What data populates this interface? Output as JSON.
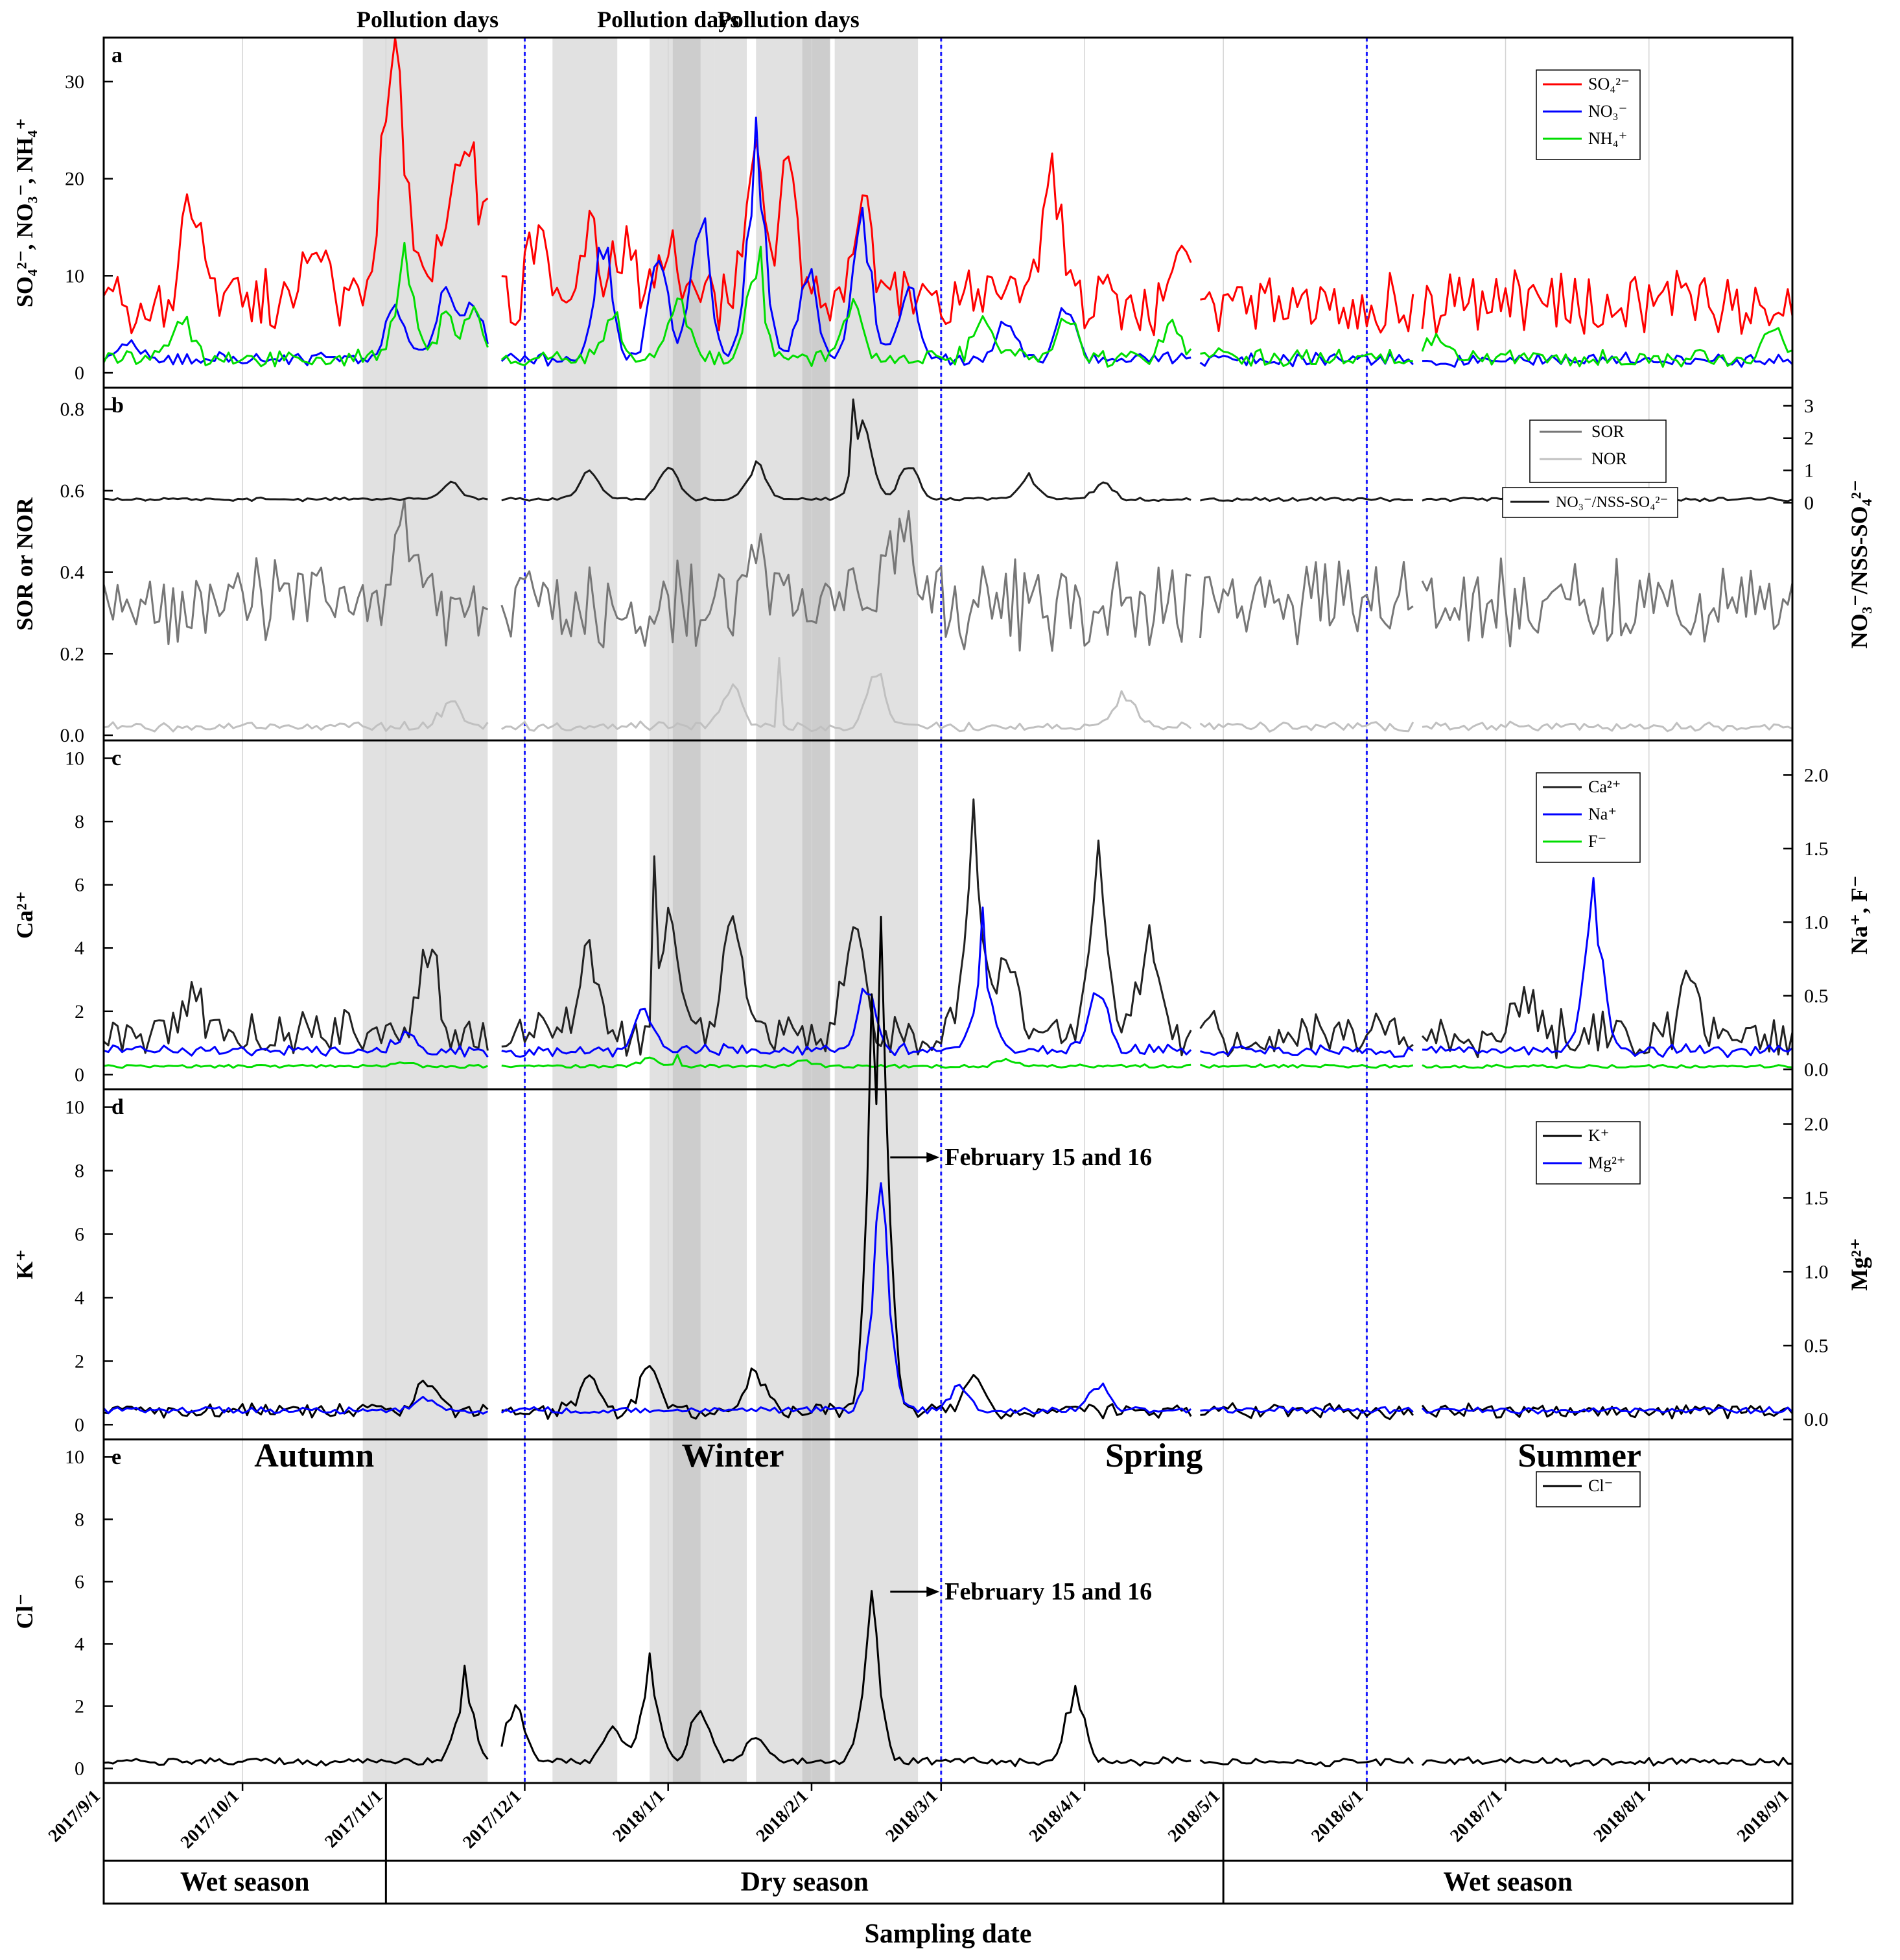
{
  "chart_data": {
    "type": "line",
    "x_axis": {
      "label": "Sampling date",
      "range": [
        "2017/9/1",
        "2018/9/1"
      ],
      "ticks": [
        "2017/9/1",
        "2017/10/1",
        "2017/11/1",
        "2017/12/1",
        "2018/1/1",
        "2018/2/1",
        "2018/3/1",
        "2018/4/1",
        "2018/5/1",
        "2018/6/1",
        "2018/7/1",
        "2018/8/1",
        "2018/9/1"
      ]
    },
    "season_boundaries": [
      "2017/12/1",
      "2018/3/1",
      "2018/6/1"
    ],
    "seasons": [
      {
        "label": "Autumn",
        "start": "2017/9/1",
        "end": "2017/12/1"
      },
      {
        "label": "Winter",
        "start": "2017/12/1",
        "end": "2018/3/1"
      },
      {
        "label": "Spring",
        "start": "2018/3/1",
        "end": "2018/6/1"
      },
      {
        "label": "Summer",
        "start": "2018/6/1",
        "end": "2018/9/1"
      }
    ],
    "wet_dry": [
      {
        "label": "Wet season",
        "start": "2017/9/1",
        "end": "2017/11/1"
      },
      {
        "label": "Dry season",
        "start": "2017/11/1",
        "end": "2018/5/1"
      },
      {
        "label": "Wet season",
        "start": "2018/5/1",
        "end": "2018/9/1"
      }
    ],
    "pollution_labels": [
      {
        "text": "Pollution days",
        "date": "2017/11/10"
      },
      {
        "text": "Pollution days",
        "date": "2018/1/1"
      },
      {
        "text": "Pollution days",
        "date": "2018/1/27"
      }
    ],
    "pollution_periods": [
      [
        "2017/10/27",
        "2017/11/10"
      ],
      [
        "2017/11/10",
        "2017/11/23"
      ],
      [
        "2017/12/7",
        "2017/12/21"
      ],
      [
        "2017/12/28",
        "2018/1/11"
      ],
      [
        "2018/1/2",
        "2018/1/8"
      ],
      [
        "2018/1/11",
        "2018/1/18"
      ],
      [
        "2018/1/20",
        "2018/2/5"
      ],
      [
        "2018/1/30",
        "2018/2/5"
      ],
      [
        "2018/2/6",
        "2018/2/24"
      ]
    ],
    "gaps": [
      [
        "2017/11/23",
        "2017/11/26"
      ],
      [
        "2018/2/5",
        "2018/2/6"
      ],
      [
        "2018/4/24",
        "2018/4/26"
      ],
      [
        "2018/6/11",
        "2018/6/13"
      ]
    ],
    "panels": [
      {
        "letter": "a",
        "left_label": "SO₄²⁻, NO₃⁻, NH₄⁺",
        "left_range": [
          -1,
          34
        ],
        "left_ticks": [
          0,
          10,
          20,
          30
        ],
        "series": [
          {
            "name": "SO₄²⁻",
            "color": "#ff0000",
            "axis": "left",
            "base": 7,
            "amp": 3,
            "noise": 0.22,
            "peaks": [
              [
                "2017/9/20",
                11
              ],
              [
                "2017/10/15",
                6
              ],
              [
                "2017/10/18",
                6
              ],
              [
                "2017/11/1",
                14
              ],
              [
                "2017/11/4",
                24
              ],
              [
                "2017/11/13",
                9
              ],
              [
                "2017/11/17",
                14
              ],
              [
                "2017/11/21",
                13
              ],
              [
                "2017/12/4",
                10
              ],
              [
                "2017/12/15",
                9
              ],
              [
                "2017/12/22",
                8
              ],
              [
                "2018/1/1",
                7
              ],
              [
                "2018/1/20",
                17
              ],
              [
                "2018/1/27",
                17
              ],
              [
                "2018/2/12",
                10
              ],
              [
                "2018/3/25",
                15
              ],
              [
                "2018/4/22",
                7
              ]
            ],
            "label_points": [
              [
                "2017/11/4",
                31
              ],
              [
                "2018/1/20",
                24
              ],
              [
                "2018/3/25",
                22.6
              ]
            ]
          },
          {
            "name": "NO₃⁻",
            "color": "#0000ff",
            "axis": "left",
            "base": 1.3,
            "amp": 0.6,
            "noise": 0.3,
            "peaks": [
              [
                "2017/9/7",
                2
              ],
              [
                "2017/11/3",
                6
              ],
              [
                "2017/11/14",
                8
              ],
              [
                "2017/11/20",
                7
              ],
              [
                "2017/12/18",
                14
              ],
              [
                "2017/12/30",
                13
              ],
              [
                "2018/1/8",
                18
              ],
              [
                "2018/1/20",
                23
              ],
              [
                "2018/1/31",
                11
              ],
              [
                "2018/2/12",
                16
              ],
              [
                "2018/2/22",
                8
              ],
              [
                "2018/3/15",
                5
              ],
              [
                "2018/3/28",
                7
              ]
            ],
            "label_points": [
              [
                "2018/1/20",
                26.3
              ]
            ]
          },
          {
            "name": "NH₄⁺",
            "color": "#00dd00",
            "axis": "left",
            "base": 1.5,
            "amp": 0.8,
            "noise": 0.25,
            "peaks": [
              [
                "2017/9/18",
                4
              ],
              [
                "2017/11/5",
                11
              ],
              [
                "2017/11/14",
                5
              ],
              [
                "2017/11/20",
                5
              ],
              [
                "2017/12/20",
                5
              ],
              [
                "2018/1/3",
                8
              ],
              [
                "2018/1/20",
                9
              ],
              [
                "2018/2/10",
                7
              ],
              [
                "2018/3/10",
                5
              ],
              [
                "2018/3/28",
                6
              ],
              [
                "2018/4/20",
                4
              ],
              [
                "2018/6/15",
                2
              ],
              [
                "2018/8/28",
                3
              ]
            ],
            "label_points": [
              [
                "2017/11/5",
                13.4
              ],
              [
                "2018/1/21",
                13
              ]
            ]
          }
        ]
      },
      {
        "letter": "b",
        "left_label": "SOR or NOR",
        "right_label": "NO₃⁻/NSS-SO₄²⁻",
        "left_range": [
          0,
          0.84
        ],
        "left_ticks": [
          0.0,
          0.2,
          0.4,
          0.6,
          0.8
        ],
        "right_range": [
          -7.2,
          3.4
        ],
        "right_ticks": [
          0,
          1,
          2,
          3
        ],
        "series": [
          {
            "name": "SOR",
            "color": "#777777",
            "axis": "left",
            "base": 0.3,
            "amp": 0.08,
            "noise": 0.3,
            "peaks": [
              [
                "2017/11/5",
                0.2
              ],
              [
                "2018/1/20",
                0.2
              ],
              [
                "2018/2/20",
                0.25
              ]
            ],
            "label_points": [
              [
                "2018/2/22",
                0.55
              ]
            ]
          },
          {
            "name": "NOR",
            "color": "#c0c0c0",
            "axis": "left",
            "base": 0.02,
            "amp": 0.01,
            "noise": 0.35,
            "peaks": [
              [
                "2017/11/15",
                0.07
              ],
              [
                "2018/1/15",
                0.12
              ],
              [
                "2018/2/15",
                0.14
              ],
              [
                "2018/4/10",
                0.1
              ]
            ],
            "label_points": [
              [
                "2018/1/25",
                0.19
              ]
            ]
          },
          {
            "name": "NO₃⁻/NSS-SO₄²⁻",
            "color": "#1a1a1a",
            "axis": "right",
            "base": 0.1,
            "amp": 0.05,
            "noise": 0.25,
            "peaks": [
              [
                "2017/11/15",
                0.6
              ],
              [
                "2017/12/15",
                1
              ],
              [
                "2018/1/1",
                1.2
              ],
              [
                "2018/1/20",
                1.2
              ],
              [
                "2018/2/12",
                2.6
              ],
              [
                "2018/2/22",
                1.2
              ],
              [
                "2018/3/20",
                0.8
              ],
              [
                "2018/4/5",
                0.6
              ]
            ],
            "label_points": [
              [
                "2018/2/10",
                3.2
              ]
            ]
          }
        ]
      },
      {
        "letter": "c",
        "left_label": "Ca²⁺",
        "right_label": "Na⁺, F⁻",
        "left_range": [
          -0.3,
          10.4
        ],
        "left_ticks": [
          0,
          2,
          4,
          6,
          8,
          10
        ],
        "right_range": [
          -0.1,
          2.2
        ],
        "right_ticks": [
          0.0,
          0.5,
          1.0,
          1.5,
          2.0
        ],
        "series": [
          {
            "name": "Ca²⁺",
            "color": "#222222",
            "axis": "left",
            "base": 1.2,
            "amp": 0.6,
            "noise": 0.4,
            "peaks": [
              [
                "2017/9/20",
                1.5
              ],
              [
                "2017/11/10",
                3.5
              ],
              [
                "2017/12/15",
                3
              ],
              [
                "2018/1/1",
                4.5
              ],
              [
                "2018/1/15",
                4.5
              ],
              [
                "2018/2/10",
                4
              ],
              [
                "2018/3/8",
                6
              ],
              [
                "2018/3/15",
                3
              ],
              [
                "2018/4/4",
                5.5
              ],
              [
                "2018/4/15",
                3.5
              ],
              [
                "2018/7/5",
                1.5
              ],
              [
                "2018/8/10",
                2
              ]
            ],
            "label_points": [
              [
                "2018/3/8",
                8.7
              ],
              [
                "2018/4/4",
                7.4
              ],
              [
                "2017/12/29",
                6.9
              ]
            ]
          },
          {
            "name": "Na⁺",
            "color": "#0000ff",
            "axis": "right",
            "base": 0.12,
            "amp": 0.03,
            "noise": 0.35,
            "peaks": [
              [
                "2017/11/5",
                0.15
              ],
              [
                "2017/12/27",
                0.35
              ],
              [
                "2018/2/13",
                0.5
              ],
              [
                "2018/3/10",
                0.7
              ],
              [
                "2018/4/4",
                0.5
              ],
              [
                "2018/7/20",
                1.1
              ]
            ],
            "label_points": [
              [
                "2018/7/20",
                1.3
              ],
              [
                "2018/3/10",
                1.1
              ]
            ]
          },
          {
            "name": "F⁻",
            "color": "#00dd00",
            "axis": "right",
            "base": 0.02,
            "amp": 0.01,
            "noise": 0.3,
            "peaks": [
              [
                "2017/11/5",
                0.03
              ],
              [
                "2017/12/28",
                0.06
              ],
              [
                "2018/1/30",
                0.05
              ],
              [
                "2018/3/15",
                0.05
              ]
            ],
            "label_points": [
              [
                "2018/1/3",
                0.1
              ]
            ]
          }
        ]
      },
      {
        "letter": "d",
        "left_label": "K⁺",
        "right_label": "Mg²⁺",
        "left_range": [
          -0.3,
          10.4
        ],
        "left_ticks": [
          0,
          2,
          4,
          6,
          8,
          10
        ],
        "right_range": [
          -0.1,
          2.2
        ],
        "right_ticks": [
          0.0,
          0.5,
          1.0,
          1.5,
          2.0
        ],
        "annotation": "February 15 and 16",
        "series": [
          {
            "name": "K⁺",
            "color": "#000000",
            "axis": "left",
            "base": 0.4,
            "amp": 0.2,
            "noise": 0.35,
            "peaks": [
              [
                "2017/11/10",
                1.2
              ],
              [
                "2017/12/15",
                1.2
              ],
              [
                "2017/12/28",
                1.6
              ],
              [
                "2018/1/20",
                1.5
              ],
              [
                "2018/2/15",
                9.8
              ],
              [
                "2018/2/16",
                8.5
              ],
              [
                "2018/3/8",
                1.2
              ]
            ],
            "label_points": [
              [
                "2018/2/15",
                10.1
              ]
            ]
          },
          {
            "name": "Mg²⁺",
            "color": "#0000ff",
            "axis": "right",
            "base": 0.06,
            "amp": 0.02,
            "noise": 0.15,
            "peaks": [
              [
                "2017/11/10",
                0.1
              ],
              [
                "2018/2/16",
                1.5
              ],
              [
                "2018/3/5",
                0.2
              ],
              [
                "2018/4/4",
                0.2
              ]
            ],
            "label_points": [
              [
                "2018/2/16",
                1.6
              ]
            ]
          }
        ]
      },
      {
        "letter": "e",
        "left_label": "Cl⁻",
        "left_range": [
          -0.3,
          10.4
        ],
        "left_ticks": [
          0,
          2,
          4,
          6,
          8,
          10
        ],
        "annotation": "February 15 and 16",
        "series": [
          {
            "name": "Cl⁻",
            "color": "#000000",
            "axis": "left",
            "base": 0.2,
            "amp": 0.1,
            "noise": 0.5,
            "peaks": [
              [
                "2017/11/18",
                2.5
              ],
              [
                "2017/11/29",
                2
              ],
              [
                "2017/12/20",
                1.5
              ],
              [
                "2017/12/28",
                3
              ],
              [
                "2018/1/8",
                2
              ],
              [
                "2018/1/20",
                1
              ],
              [
                "2018/2/14",
                5
              ],
              [
                "2018/3/30",
                2.5
              ]
            ],
            "label_points": [
              [
                "2018/2/14",
                5.7
              ],
              [
                "2017/12/28",
                3.7
              ],
              [
                "2017/11/18",
                3.3
              ]
            ]
          }
        ]
      }
    ]
  }
}
